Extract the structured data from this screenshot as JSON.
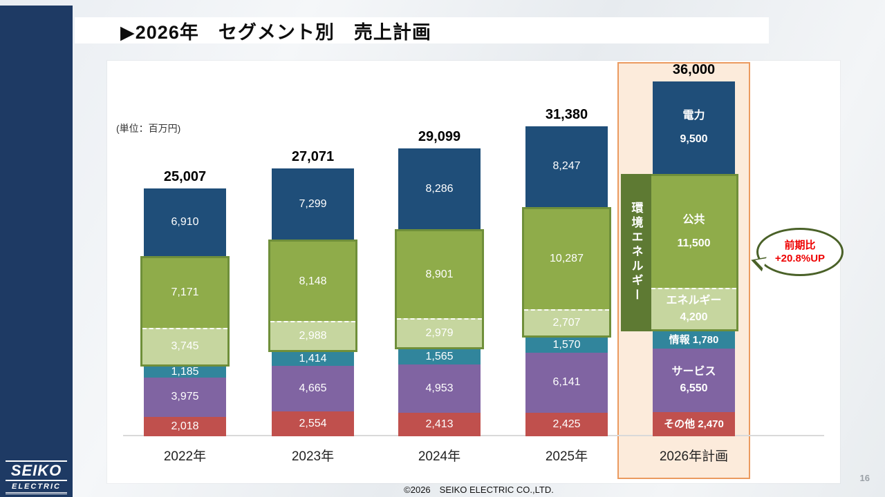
{
  "slide": {
    "title": "▶2026年　セグメント別　売上計画",
    "unit_label": "(単位：百万円)",
    "footer": "©2026　SEIKO ELECTRIC CO.,LTD.",
    "page_number": "16",
    "logo_line1": "SEIKO",
    "logo_line2": "ELECTRIC"
  },
  "callout": {
    "line1": "前期比",
    "line2": "+20.8%UP"
  },
  "colors": {
    "sidebar_navy": "#1e3a64",
    "highlight_fill": "#fcebdb",
    "highlight_border": "#eb9a5f",
    "group_outline": "#6f8f3a",
    "group_label_bg": "#5e7a33",
    "callout_border": "#4a6128",
    "callout_text": "#ee0000"
  },
  "chart_data": {
    "type": "bar",
    "stacked": true,
    "unit": "百万円",
    "title": "2026年 セグメント別 売上計画",
    "categories": [
      "2022年",
      "2023年",
      "2024年",
      "2025年",
      "2026年計画"
    ],
    "totals": [
      25007,
      27071,
      29099,
      31380,
      36000
    ],
    "series": [
      {
        "name": "その他",
        "color": "#c0504d",
        "values": [
          2018,
          2554,
          2413,
          2425,
          2470
        ]
      },
      {
        "name": "サービス",
        "color": "#8064a2",
        "values": [
          3975,
          4665,
          4953,
          6141,
          6550
        ]
      },
      {
        "name": "情報",
        "color": "#31859c",
        "values": [
          1185,
          1414,
          1565,
          1570,
          1780
        ]
      },
      {
        "name": "エネルギー",
        "color": "#c6d69f",
        "values": [
          3745,
          2988,
          2979,
          2707,
          4200
        ]
      },
      {
        "name": "公共",
        "color": "#8fac4a",
        "values": [
          7171,
          8148,
          8901,
          10287,
          11500
        ]
      },
      {
        "name": "電力",
        "color": "#1f4e79",
        "values": [
          6910,
          7299,
          8286,
          8247,
          9500
        ]
      }
    ],
    "order_top_to_bottom": [
      "電力",
      "公共",
      "エネルギー",
      "情報",
      "サービス",
      "その他"
    ],
    "group": {
      "label": "環境エネルギー",
      "series": [
        "公共",
        "エネルギー"
      ]
    },
    "divider_dashed_series": "エネルギー",
    "ymax": 36000,
    "ylim": [
      0,
      36000
    ],
    "grid": false,
    "legend": "none"
  }
}
